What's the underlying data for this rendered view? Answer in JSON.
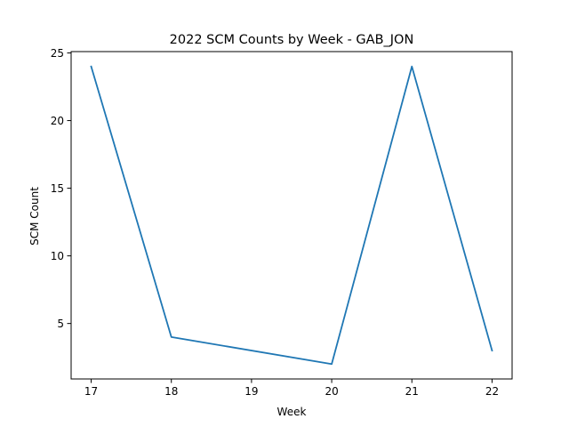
{
  "chart_data": {
    "type": "line",
    "title": "2022 SCM Counts by Week - GAB_JON",
    "xlabel": "Week",
    "ylabel": "SCM Count",
    "x": [
      17,
      18,
      20,
      21,
      22
    ],
    "series": [
      {
        "name": "SCM Count",
        "values": [
          24,
          4,
          2,
          24,
          3
        ],
        "color": "#1f77b4"
      }
    ],
    "xlim": [
      16.75,
      22.25
    ],
    "ylim": [
      0.9,
      25.1
    ],
    "xticks": [
      "17",
      "18",
      "19",
      "20",
      "21",
      "22"
    ],
    "yticks": [
      "5",
      "10",
      "15",
      "20",
      "25"
    ],
    "grid": false,
    "legend": false
  }
}
